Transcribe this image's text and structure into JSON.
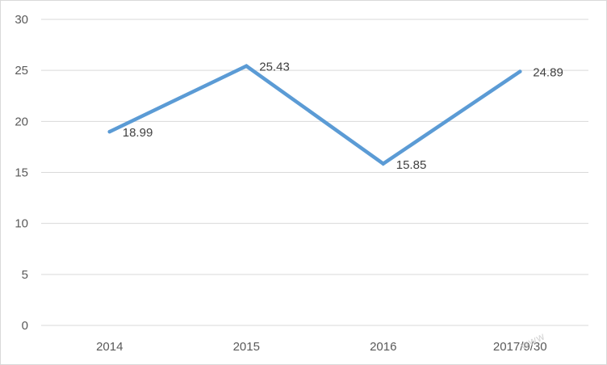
{
  "chart_data": {
    "type": "line",
    "title": "",
    "xlabel": "",
    "ylabel": "",
    "categories": [
      "2014",
      "2015",
      "2016",
      "2017/9/30"
    ],
    "series": [
      {
        "values": [
          18.99,
          25.43,
          15.85,
          24.89
        ],
        "color": "#5b9bd5"
      }
    ],
    "data_labels": [
      "18.99",
      "25.43",
      "15.85",
      "24.89"
    ],
    "ylim": [
      0,
      30
    ],
    "y_ticks": [
      "0",
      "5",
      "10",
      "15",
      "20",
      "25",
      "30"
    ],
    "grid": true,
    "legend": "none"
  },
  "colors": {
    "line": "#5b9bd5",
    "grid": "#d9d9d9",
    "tick_text": "#595959",
    "label_text": "#404040"
  }
}
